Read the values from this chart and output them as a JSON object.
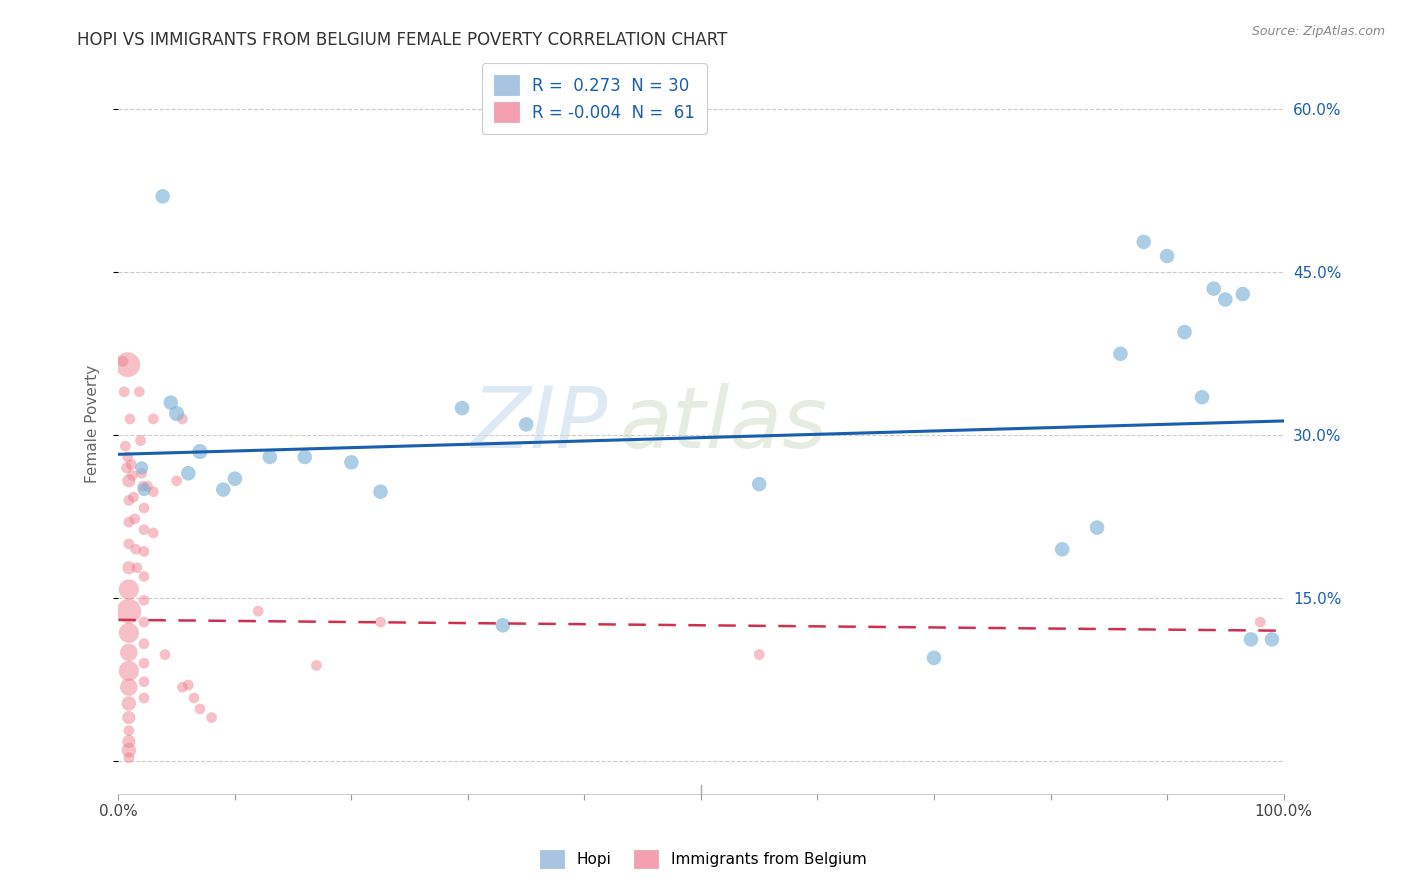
{
  "title": "HOPI VS IMMIGRANTS FROM BELGIUM FEMALE POVERTY CORRELATION CHART",
  "source": "Source: ZipAtlas.com",
  "ylabel": "Female Poverty",
  "hopi_R": 0.273,
  "hopi_N": 30,
  "belgium_R": -0.004,
  "belgium_N": 61,
  "hopi_color": "#7fb3d8",
  "belgium_color": "#f08090",
  "hopi_line_color": "#1a5fad",
  "belgium_line_color": "#d03050",
  "watermark_zip": "ZIP",
  "watermark_atlas": "atlas",
  "legend_box_color_hopi": "#a8c4e0",
  "legend_box_color_belgium": "#f4a0b0",
  "legend_text_color": "#1a5fad",
  "bottom_legend_labels": [
    "Hopi",
    "Immigrants from Belgium"
  ],
  "hopi_points": [
    [
      0.02,
      0.27
    ],
    [
      0.022,
      0.25
    ],
    [
      0.038,
      0.52
    ],
    [
      0.045,
      0.33
    ],
    [
      0.05,
      0.32
    ],
    [
      0.06,
      0.265
    ],
    [
      0.07,
      0.285
    ],
    [
      0.09,
      0.25
    ],
    [
      0.1,
      0.26
    ],
    [
      0.13,
      0.28
    ],
    [
      0.16,
      0.28
    ],
    [
      0.2,
      0.275
    ],
    [
      0.225,
      0.248
    ],
    [
      0.295,
      0.325
    ],
    [
      0.33,
      0.125
    ],
    [
      0.35,
      0.31
    ],
    [
      0.55,
      0.255
    ],
    [
      0.7,
      0.095
    ],
    [
      0.81,
      0.195
    ],
    [
      0.84,
      0.215
    ],
    [
      0.86,
      0.375
    ],
    [
      0.88,
      0.478
    ],
    [
      0.9,
      0.465
    ],
    [
      0.915,
      0.395
    ],
    [
      0.93,
      0.335
    ],
    [
      0.94,
      0.435
    ],
    [
      0.95,
      0.425
    ],
    [
      0.965,
      0.43
    ],
    [
      0.972,
      0.112
    ],
    [
      0.99,
      0.112
    ]
  ],
  "hopi_sizes": [
    90,
    90,
    110,
    110,
    120,
    110,
    120,
    110,
    110,
    110,
    110,
    110,
    110,
    110,
    110,
    110,
    110,
    110,
    110,
    110,
    110,
    110,
    110,
    110,
    110,
    110,
    110,
    110,
    110,
    110
  ],
  "belgium_points": [
    [
      0.004,
      0.368
    ],
    [
      0.005,
      0.34
    ],
    [
      0.006,
      0.29
    ],
    [
      0.007,
      0.27
    ],
    [
      0.008,
      0.365
    ],
    [
      0.008,
      0.28
    ],
    [
      0.009,
      0.258
    ],
    [
      0.009,
      0.24
    ],
    [
      0.009,
      0.22
    ],
    [
      0.009,
      0.2
    ],
    [
      0.009,
      0.178
    ],
    [
      0.009,
      0.158
    ],
    [
      0.009,
      0.138
    ],
    [
      0.009,
      0.118
    ],
    [
      0.009,
      0.1
    ],
    [
      0.009,
      0.083
    ],
    [
      0.009,
      0.068
    ],
    [
      0.009,
      0.053
    ],
    [
      0.009,
      0.04
    ],
    [
      0.009,
      0.028
    ],
    [
      0.009,
      0.018
    ],
    [
      0.009,
      0.01
    ],
    [
      0.009,
      0.003
    ],
    [
      0.01,
      0.315
    ],
    [
      0.011,
      0.273
    ],
    [
      0.012,
      0.263
    ],
    [
      0.013,
      0.243
    ],
    [
      0.014,
      0.223
    ],
    [
      0.015,
      0.195
    ],
    [
      0.016,
      0.178
    ],
    [
      0.018,
      0.34
    ],
    [
      0.019,
      0.295
    ],
    [
      0.02,
      0.265
    ],
    [
      0.021,
      0.253
    ],
    [
      0.022,
      0.233
    ],
    [
      0.022,
      0.213
    ],
    [
      0.022,
      0.193
    ],
    [
      0.022,
      0.17
    ],
    [
      0.022,
      0.148
    ],
    [
      0.022,
      0.128
    ],
    [
      0.022,
      0.108
    ],
    [
      0.022,
      0.09
    ],
    [
      0.022,
      0.073
    ],
    [
      0.022,
      0.058
    ],
    [
      0.025,
      0.253
    ],
    [
      0.03,
      0.315
    ],
    [
      0.03,
      0.248
    ],
    [
      0.03,
      0.21
    ],
    [
      0.04,
      0.098
    ],
    [
      0.05,
      0.258
    ],
    [
      0.055,
      0.315
    ],
    [
      0.055,
      0.068
    ],
    [
      0.06,
      0.07
    ],
    [
      0.065,
      0.058
    ],
    [
      0.07,
      0.048
    ],
    [
      0.08,
      0.04
    ],
    [
      0.12,
      0.138
    ],
    [
      0.17,
      0.088
    ],
    [
      0.225,
      0.128
    ],
    [
      0.55,
      0.098
    ],
    [
      0.98,
      0.128
    ]
  ],
  "belgium_sizes": [
    60,
    60,
    60,
    60,
    320,
    60,
    90,
    60,
    60,
    60,
    90,
    210,
    320,
    210,
    160,
    210,
    160,
    110,
    90,
    60,
    90,
    110,
    60,
    60,
    60,
    60,
    60,
    60,
    60,
    60,
    60,
    60,
    60,
    60,
    60,
    60,
    60,
    60,
    60,
    60,
    60,
    60,
    60,
    60,
    60,
    60,
    60,
    60,
    60,
    60,
    60,
    60,
    60,
    60,
    60,
    60,
    60,
    60,
    60,
    60,
    60
  ],
  "xmin": 0.0,
  "xmax": 1.0,
  "ymin": -0.03,
  "ymax": 0.65,
  "yticks": [
    0.0,
    0.15,
    0.3,
    0.45,
    0.6
  ],
  "ytick_labels": [
    "",
    "15.0%",
    "30.0%",
    "45.0%",
    "60.0%"
  ],
  "grid_color": "#cccccc",
  "border_color": "#cccccc"
}
